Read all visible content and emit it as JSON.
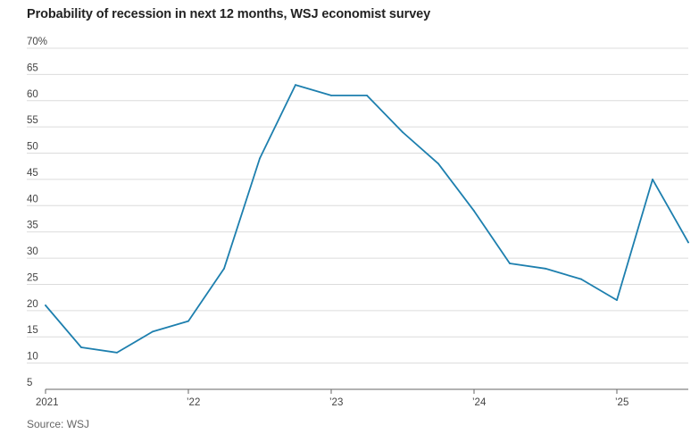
{
  "title": "Probability of recession in next 12 months, WSJ economist survey",
  "source": "Source: WSJ",
  "colors": {
    "line": "#1d7fae",
    "grid": "#dcdcdc",
    "axis": "#666666"
  },
  "chart_data": {
    "type": "line",
    "title": "Probability of recession in next 12 months, WSJ economist survey",
    "xlabel": "",
    "ylabel": "",
    "ylim": [
      5,
      70
    ],
    "xlim": [
      2021.0,
      2025.5
    ],
    "y_ticks": [
      {
        "value": 70,
        "label": "70%"
      },
      {
        "value": 65,
        "label": "65"
      },
      {
        "value": 60,
        "label": "60"
      },
      {
        "value": 55,
        "label": "55"
      },
      {
        "value": 50,
        "label": "50"
      },
      {
        "value": 45,
        "label": "45"
      },
      {
        "value": 40,
        "label": "40"
      },
      {
        "value": 35,
        "label": "35"
      },
      {
        "value": 30,
        "label": "30"
      },
      {
        "value": 25,
        "label": "25"
      },
      {
        "value": 20,
        "label": "20"
      },
      {
        "value": 15,
        "label": "15"
      },
      {
        "value": 10,
        "label": "10"
      },
      {
        "value": 5,
        "label": "5"
      }
    ],
    "x_ticks": [
      {
        "value": 2021,
        "label": "2021"
      },
      {
        "value": 2022,
        "label": "’22"
      },
      {
        "value": 2023,
        "label": "’23"
      },
      {
        "value": 2024,
        "label": "’24"
      },
      {
        "value": 2025,
        "label": "’25"
      }
    ],
    "grid": true,
    "series": [
      {
        "x": [
          2021.0,
          2021.25,
          2021.5,
          2021.75,
          2022.0,
          2022.25,
          2022.5,
          2022.75,
          2023.0,
          2023.25,
          2023.5,
          2023.75,
          2024.0,
          2024.25,
          2024.5,
          2024.75,
          2025.0,
          2025.25,
          2025.5
        ],
        "values": [
          21,
          13,
          12,
          16,
          18,
          28,
          49,
          63,
          61,
          61,
          54,
          48,
          39,
          29,
          28,
          26,
          22,
          45,
          33
        ]
      }
    ]
  }
}
